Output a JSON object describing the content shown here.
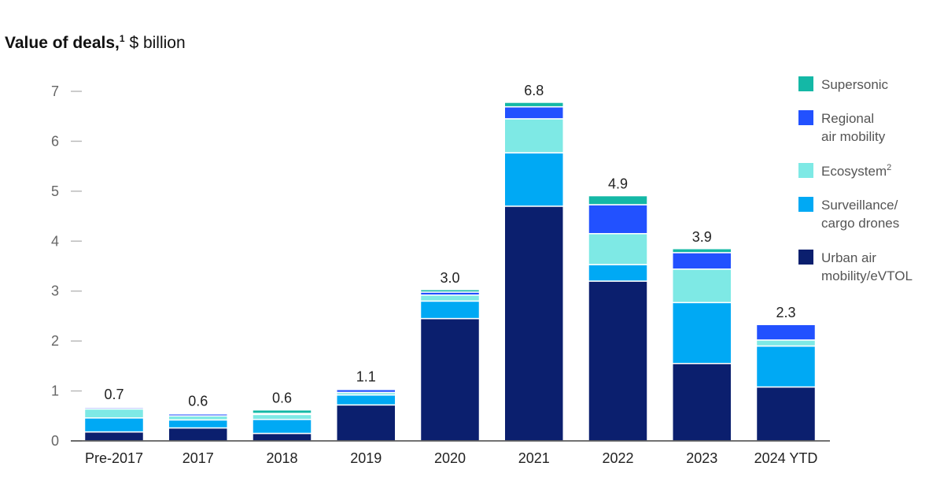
{
  "title": {
    "main": "Value of deals,",
    "footnote_marker": "1",
    "unit": "$ billion"
  },
  "chart_data": {
    "type": "bar",
    "stacked": true,
    "title": "Value of deals,¹ $ billion",
    "ylim": [
      0,
      7
    ],
    "yticks": [
      0,
      1,
      2,
      3,
      4,
      5,
      6,
      7
    ],
    "grid": false,
    "legend_position": "right",
    "categories": [
      "Pre-2017",
      "2017",
      "2018",
      "2019",
      "2020",
      "2021",
      "2022",
      "2023",
      "2024 YTD"
    ],
    "totals_labels": [
      "0.7",
      "0.6",
      "0.6",
      "1.1",
      "3.0",
      "6.8",
      "4.9",
      "3.9",
      "2.3"
    ],
    "series": [
      {
        "name": "Urban air mobility/eVTOL",
        "legend_lines": [
          "Urban air",
          "mobility/eVTOL"
        ],
        "color": "#0b1f6e",
        "values": [
          0.18,
          0.26,
          0.15,
          0.72,
          2.45,
          4.7,
          3.2,
          1.55,
          1.08
        ]
      },
      {
        "name": "Surveillance/cargo drones",
        "legend_lines": [
          "Surveillance/",
          "cargo drones"
        ],
        "color": "#00a9f4",
        "values": [
          0.28,
          0.16,
          0.28,
          0.2,
          0.35,
          1.07,
          0.33,
          1.22,
          0.82
        ]
      },
      {
        "name": "Ecosystem",
        "legend_lines": [
          "Ecosystem"
        ],
        "legend_sup": "2",
        "color": "#7ee9e5",
        "values": [
          0.18,
          0.08,
          0.1,
          0.05,
          0.12,
          0.68,
          0.62,
          0.67,
          0.12
        ]
      },
      {
        "name": "Regional air mobility",
        "legend_lines": [
          "Regional",
          "air mobility"
        ],
        "color": "#2251ff",
        "values": [
          0.03,
          0.04,
          0.02,
          0.06,
          0.06,
          0.24,
          0.58,
          0.33,
          0.31
        ]
      },
      {
        "name": "Supersonic",
        "legend_lines": [
          "Supersonic"
        ],
        "color": "#14b8a6",
        "values": [
          0.02,
          0.02,
          0.07,
          0.02,
          0.05,
          0.09,
          0.18,
          0.08,
          0.0
        ]
      }
    ]
  }
}
